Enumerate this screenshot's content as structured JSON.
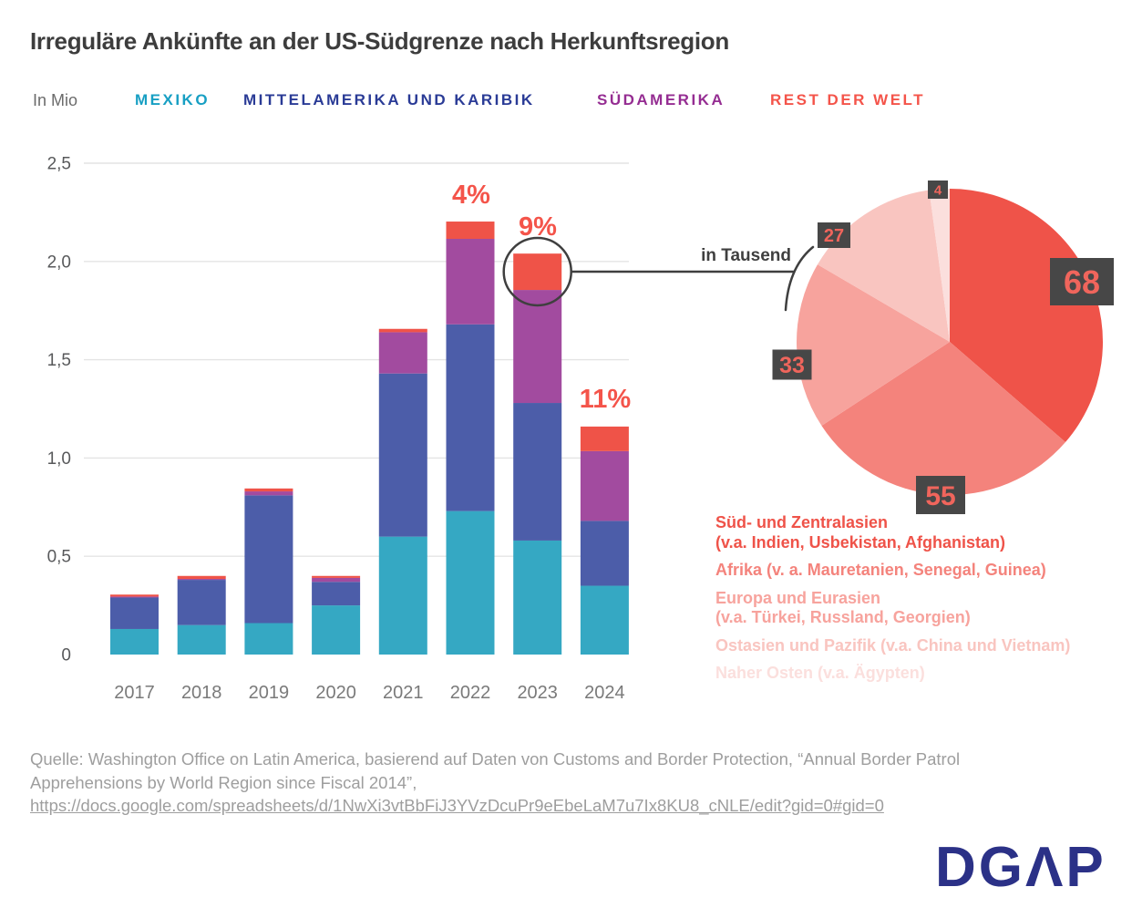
{
  "title": "Irreguläre Ankünfte an der US-Südgrenze nach Herkunftsregion",
  "axis_unit_label": "In Mio",
  "bar_legend": {
    "items": [
      {
        "label": "MEXIKO",
        "color": "#179fc3"
      },
      {
        "label": "MITTELAMERIKA UND KARIBIK",
        "color": "#2a3b96"
      },
      {
        "label": "SÜDAMERIKA",
        "color": "#952d92"
      },
      {
        "label": "REST DER WELT",
        "color": "#f4544a"
      }
    ]
  },
  "chart_data": [
    {
      "type": "bar",
      "stacked": true,
      "title": "Irreguläre Ankünfte an der US-Südgrenze nach Herkunftsregion",
      "ylabel": "In Mio",
      "ylim": [
        0,
        2.5
      ],
      "yticks": [
        "0",
        "0,5",
        "1,0",
        "1,5",
        "2,0",
        "2,5"
      ],
      "grid": true,
      "categories": [
        "2017",
        "2018",
        "2019",
        "2020",
        "2021",
        "2022",
        "2023",
        "2024"
      ],
      "series": [
        {
          "name": "Mexiko",
          "color": "#35a8c3",
          "values": [
            0.13,
            0.15,
            0.16,
            0.25,
            0.6,
            0.73,
            0.58,
            0.35
          ]
        },
        {
          "name": "Mittelamerika und Karibik",
          "color": "#4c5da9",
          "values": [
            0.16,
            0.23,
            0.65,
            0.12,
            0.83,
            0.95,
            0.7,
            0.33
          ]
        },
        {
          "name": "Südamerika",
          "color": "#a24b9f",
          "values": [
            0.005,
            0.005,
            0.02,
            0.02,
            0.21,
            0.435,
            0.575,
            0.355
          ]
        },
        {
          "name": "Rest der Welt",
          "color": "#ef5348",
          "values": [
            0.01,
            0.015,
            0.015,
            0.01,
            0.017,
            0.088,
            0.185,
            0.125
          ]
        }
      ],
      "annotations": [
        {
          "category": "2022",
          "text": "4%"
        },
        {
          "category": "2023",
          "text": "9%",
          "circled": true
        },
        {
          "category": "2024",
          "text": "11%"
        }
      ]
    },
    {
      "type": "pie",
      "unit_label": "in Tausend",
      "slices": [
        {
          "label": "Süd- und Zentralasien (v.a. Indien, Usbekistan, Afghanistan)",
          "value": 68,
          "color": "#ef5349"
        },
        {
          "label": "Afrika (v. a. Mauretanien, Senegal, Guinea)",
          "value": 55,
          "color": "#f4837c"
        },
        {
          "label": "Europa und Eurasien (v.a. Türkei, Russland, Georgien)",
          "value": 33,
          "color": "#f7a39d"
        },
        {
          "label": "Ostasien und Pazifik (v.a. China und Vietnam)",
          "value": 27,
          "color": "#f9c5c0"
        },
        {
          "label": "Naher Osten (v.a. Ägypten)",
          "value": 4,
          "color": "#fbdfdd"
        }
      ]
    }
  ],
  "pie_legend": [
    {
      "line1": "Süd- und Zentralasien",
      "line2": "(v.a. Indien, Usbekistan, Afghanistan)",
      "color": "#ef5349"
    },
    {
      "line1": "Afrika (v. a. Mauretanien, Senegal, Guinea)",
      "line2": "",
      "color": "#f4837c"
    },
    {
      "line1": "Europa und Eurasien",
      "line2": "(v.a. Türkei, Russland, Georgien)",
      "color": "#f7a39d"
    },
    {
      "line1": "Ostasien und Pazifik (v.a. China und Vietnam)",
      "line2": "",
      "color": "#f9c5c0"
    },
    {
      "line1": "Naher Osten (v.a. Ägypten)",
      "line2": "",
      "color": "#fbdfdd"
    }
  ],
  "source": {
    "line1": "Quelle: Washington Office on Latin America, basierend auf Daten von Customs and Border Protection, “Annual Border Patrol",
    "line2": "Apprehensions by World Region since Fiscal 2014”,",
    "url": "https://docs.google.com/spreadsheets/d/1NwXi3vtBbFiJ3YVzDcuPr9eEbeLaM7u7Ix8KU8_cNLE/edit?gid=0#gid=0"
  },
  "logo": {
    "text": "DGAP",
    "display_glyphs": "DGΛP"
  }
}
